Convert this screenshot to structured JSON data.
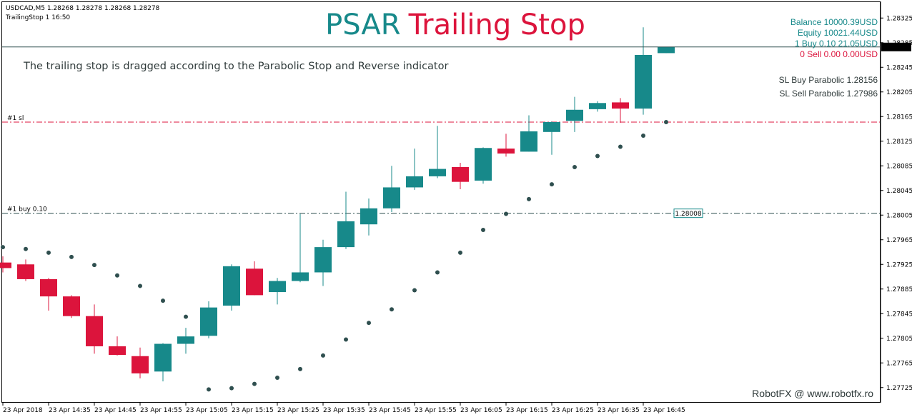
{
  "header": {
    "symbol_line": "USDCAD,M5  1.28268 1.28278 1.28268 1.28278",
    "ea_line": "TrailingStop 1 16:50"
  },
  "title": {
    "part1": "PSAR",
    "part2": "Trailing Stop",
    "color1": "#17898a",
    "color2": "#dc143c"
  },
  "description": "The trailing stop is dragged according to the Parabolic Stop and Reverse indicator",
  "account": {
    "balance": "Balance 10000.39USD",
    "equity": "Equity 10021.44USD",
    "buy": "1 Buy 0.10 21.05USD",
    "sell": "0 Sell 0.00 0.00USD"
  },
  "parabolic": {
    "sl_buy": "SL Buy Parabolic 1.28156",
    "sl_sell": "SL Sell Parabolic 1.27986"
  },
  "watermark": "RobotFX @ www.robotfx.ro",
  "chart_data": {
    "type": "candlestick",
    "colors": {
      "bull": "#17898a",
      "bear": "#dc143c",
      "psar": "#2f4f4f"
    },
    "ylim": [
      1.27705,
      1.28345
    ],
    "y_ticks": [
      "1.28325",
      "1.28285",
      "1.28245",
      "1.28205",
      "1.28165",
      "1.28125",
      "1.28085",
      "1.28045",
      "1.28005",
      "1.27965",
      "1.27925",
      "1.27885",
      "1.27845",
      "1.27805",
      "1.27765",
      "1.27725"
    ],
    "current_price": "1.28278",
    "x_tick_labels": [
      "23 Apr 2018",
      "23 Apr 14:35",
      "23 Apr 14:45",
      "23 Apr 14:55",
      "23 Apr 15:05",
      "23 Apr 15:15",
      "23 Apr 15:25",
      "23 Apr 15:35",
      "23 Apr 15:45",
      "23 Apr 15:55",
      "23 Apr 16:05",
      "23 Apr 16:15",
      "23 Apr 16:25",
      "23 Apr 16:35",
      "23 Apr 16:45"
    ],
    "levels": {
      "sl": {
        "label": "#1 sl",
        "price": 1.28156,
        "color": "#dc143c"
      },
      "buy": {
        "label": "#1 buy 0.10",
        "price": 1.28008,
        "color": "#2f4f4f",
        "tag": "1.28008"
      }
    },
    "candles": [
      {
        "o": 1.27928,
        "h": 1.27938,
        "l": 1.27912,
        "c": 1.27919
      },
      {
        "o": 1.27925,
        "h": 1.27933,
        "l": 1.27898,
        "c": 1.27901
      },
      {
        "o": 1.27901,
        "h": 1.27903,
        "l": 1.2785,
        "c": 1.27873
      },
      {
        "o": 1.27873,
        "h": 1.27875,
        "l": 1.27838,
        "c": 1.27841
      },
      {
        "o": 1.27841,
        "h": 1.2786,
        "l": 1.2778,
        "c": 1.27792
      },
      {
        "o": 1.27792,
        "h": 1.27808,
        "l": 1.27777,
        "c": 1.27778
      },
      {
        "o": 1.27776,
        "h": 1.2779,
        "l": 1.2774,
        "c": 1.27748
      },
      {
        "o": 1.27751,
        "h": 1.27797,
        "l": 1.27735,
        "c": 1.27796
      },
      {
        "o": 1.27796,
        "h": 1.27822,
        "l": 1.2778,
        "c": 1.27808
      },
      {
        "o": 1.27809,
        "h": 1.27865,
        "l": 1.27805,
        "c": 1.27855
      },
      {
        "o": 1.27858,
        "h": 1.27925,
        "l": 1.2785,
        "c": 1.27922
      },
      {
        "o": 1.27918,
        "h": 1.2793,
        "l": 1.27875,
        "c": 1.27875
      },
      {
        "o": 1.2788,
        "h": 1.27903,
        "l": 1.2786,
        "c": 1.27898
      },
      {
        "o": 1.27898,
        "h": 1.28007,
        "l": 1.27896,
        "c": 1.27912
      },
      {
        "o": 1.27912,
        "h": 1.27965,
        "l": 1.2789,
        "c": 1.27953
      },
      {
        "o": 1.27953,
        "h": 1.28043,
        "l": 1.2795,
        "c": 1.27995
      },
      {
        "o": 1.2799,
        "h": 1.28032,
        "l": 1.27972,
        "c": 1.28016
      },
      {
        "o": 1.28016,
        "h": 1.28085,
        "l": 1.2801,
        "c": 1.2805
      },
      {
        "o": 1.2805,
        "h": 1.28113,
        "l": 1.28046,
        "c": 1.28068
      },
      {
        "o": 1.28068,
        "h": 1.2815,
        "l": 1.28065,
        "c": 1.2808
      },
      {
        "o": 1.28083,
        "h": 1.2809,
        "l": 1.28047,
        "c": 1.28059
      },
      {
        "o": 1.28061,
        "h": 1.28115,
        "l": 1.28056,
        "c": 1.28114
      },
      {
        "o": 1.28113,
        "h": 1.28137,
        "l": 1.281,
        "c": 1.28105
      },
      {
        "o": 1.28108,
        "h": 1.28167,
        "l": 1.28108,
        "c": 1.28141
      },
      {
        "o": 1.2814,
        "h": 1.28157,
        "l": 1.28103,
        "c": 1.28156
      },
      {
        "o": 1.28158,
        "h": 1.28197,
        "l": 1.2814,
        "c": 1.28176
      },
      {
        "o": 1.28177,
        "h": 1.2819,
        "l": 1.28173,
        "c": 1.28187
      },
      {
        "o": 1.28188,
        "h": 1.28195,
        "l": 1.28155,
        "c": 1.28178
      },
      {
        "o": 1.28178,
        "h": 1.2831,
        "l": 1.28168,
        "c": 1.28265
      },
      {
        "o": 1.28268,
        "h": 1.28278,
        "l": 1.28268,
        "c": 1.28278
      }
    ],
    "psar": [
      1.27953,
      1.2795,
      1.27944,
      1.27937,
      1.27924,
      1.27907,
      1.2789,
      1.27866,
      1.2784,
      1.27722,
      1.27724,
      1.27731,
      1.27741,
      1.27755,
      1.27777,
      1.27803,
      1.2783,
      1.27852,
      1.27883,
      1.27912,
      1.27944,
      1.27981,
      1.28007,
      1.28031,
      1.28055,
      1.28083,
      1.28101,
      1.28116,
      1.28134,
      1.28156
    ]
  }
}
